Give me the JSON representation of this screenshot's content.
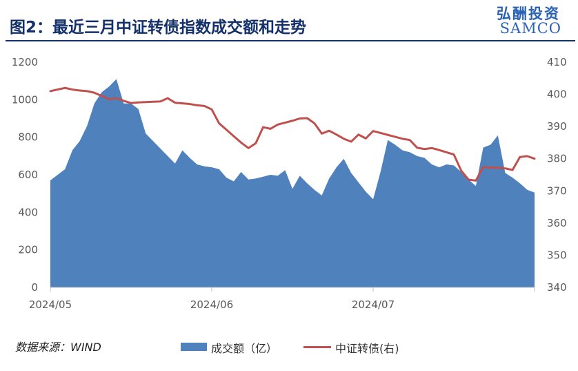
{
  "header": {
    "title": "图2：最近三月中证转债指数成交额和走势",
    "logo_cn": "弘酬投资",
    "logo_en": "SAMCO"
  },
  "footer": {
    "source": "数据来源：WIND"
  },
  "legend": [
    {
      "label": "成交额（亿）",
      "color": "#4f81bd"
    },
    {
      "label": "中证转债(右)",
      "color": "#c0504d"
    }
  ],
  "chart_data": {
    "type": "area",
    "title": "",
    "x_tick_labels": [
      "2024/05",
      "2024/06",
      "2024/07"
    ],
    "x_tick_index": [
      0,
      22,
      44
    ],
    "num_points": 67,
    "left_axis": {
      "min": 0,
      "max": 1200,
      "ticks": [
        0,
        200,
        400,
        600,
        800,
        1000,
        1200
      ]
    },
    "right_axis": {
      "min": 340,
      "max": 410,
      "ticks": [
        340,
        350,
        360,
        370,
        380,
        390,
        400,
        410
      ]
    },
    "series": [
      {
        "name": "成交额（亿）",
        "axis": "left",
        "kind": "area",
        "color": "#4f81bd",
        "values": [
          570,
          600,
          630,
          730,
          780,
          860,
          980,
          1040,
          1070,
          1110,
          980,
          980,
          950,
          820,
          780,
          740,
          700,
          660,
          730,
          690,
          655,
          645,
          640,
          630,
          585,
          565,
          615,
          575,
          580,
          590,
          600,
          595,
          625,
          525,
          595,
          555,
          520,
          490,
          580,
          640,
          685,
          610,
          560,
          510,
          470,
          615,
          785,
          760,
          730,
          720,
          700,
          690,
          655,
          640,
          655,
          650,
          615,
          575,
          540,
          745,
          760,
          810,
          610,
          585,
          555,
          520,
          505
        ]
      },
      {
        "name": "中证转债(右)",
        "axis": "right",
        "kind": "line",
        "color": "#c0504d",
        "values": [
          401.0,
          401.5,
          402.0,
          401.5,
          401.2,
          401.0,
          400.5,
          399.5,
          398.5,
          398.8,
          398.0,
          397.3,
          397.5,
          397.6,
          397.7,
          397.8,
          398.8,
          397.4,
          397.2,
          397.0,
          396.6,
          396.4,
          395.3,
          391.0,
          389.0,
          387.0,
          385.0,
          383.3,
          384.8,
          389.8,
          389.3,
          390.6,
          391.2,
          391.8,
          392.5,
          392.6,
          391.0,
          387.8,
          388.7,
          387.5,
          386.2,
          385.3,
          387.5,
          386.3,
          388.6,
          388.0,
          387.4,
          386.8,
          386.2,
          385.8,
          383.4,
          383.0,
          383.3,
          382.7,
          382.0,
          381.3,
          376.3,
          373.5,
          373.2,
          377.4,
          377.2,
          377.2,
          377.0,
          376.5,
          380.5,
          380.8,
          380.0
        ]
      }
    ]
  }
}
